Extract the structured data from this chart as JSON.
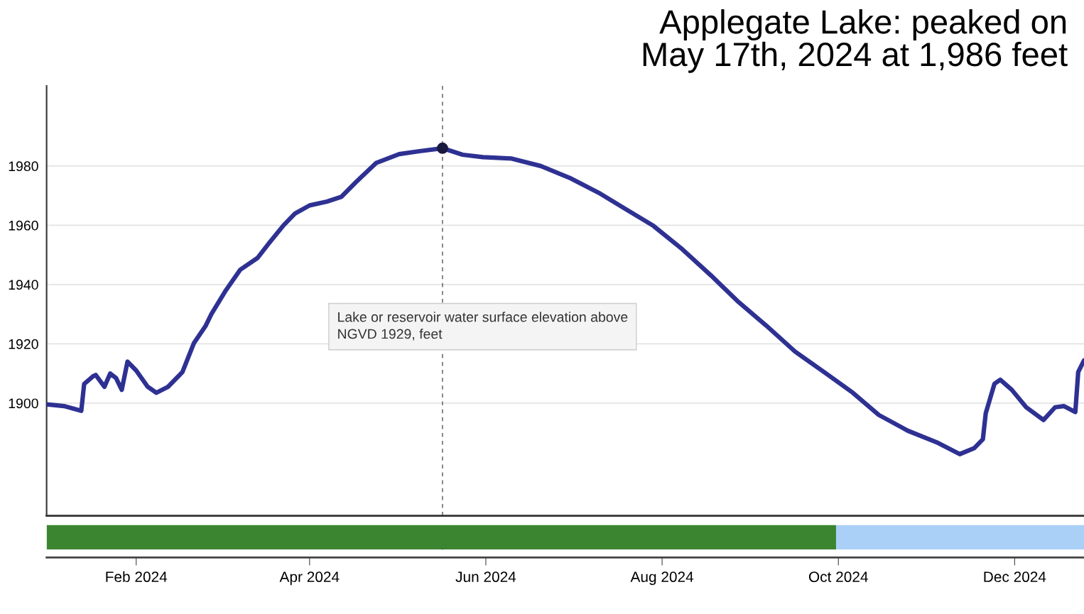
{
  "chart_data": {
    "type": "line",
    "title": "Applegate Lake: peaked on\nMay 17th, 2024 at 1,986 feet",
    "annotations": [
      "Lake or reservoir water surface elevation above\nNGVD 1929, feet"
    ],
    "x": [
      "2024-01-01",
      "2024-01-07",
      "2024-01-13",
      "2024-01-14",
      "2024-01-17",
      "2024-01-18",
      "2024-01-21",
      "2024-01-23",
      "2024-01-25",
      "2024-01-27",
      "2024-01-29",
      "2024-02-01",
      "2024-02-05",
      "2024-02-08",
      "2024-02-12",
      "2024-02-17",
      "2024-02-21",
      "2024-02-25",
      "2024-02-27",
      "2024-03-03",
      "2024-03-08",
      "2024-03-14",
      "2024-03-18",
      "2024-03-23",
      "2024-03-27",
      "2024-04-01",
      "2024-04-07",
      "2024-04-12",
      "2024-04-17",
      "2024-04-24",
      "2024-05-02",
      "2024-05-09",
      "2024-05-17",
      "2024-05-24",
      "2024-05-31",
      "2024-06-10",
      "2024-06-20",
      "2024-06-30",
      "2024-07-10",
      "2024-07-19",
      "2024-07-29",
      "2024-08-08",
      "2024-08-18",
      "2024-08-27",
      "2024-09-06",
      "2024-09-16",
      "2024-09-26",
      "2024-10-06",
      "2024-10-15",
      "2024-10-25",
      "2024-11-04",
      "2024-11-12",
      "2024-11-17",
      "2024-11-20",
      "2024-11-21",
      "2024-11-24",
      "2024-11-26",
      "2024-11-30",
      "2024-12-05",
      "2024-12-11",
      "2024-12-15",
      "2024-12-18",
      "2024-12-22",
      "2024-12-23",
      "2024-12-25"
    ],
    "series": [
      {
        "color": "#2e3192",
        "values": [
          1899.6,
          1899,
          1897.4,
          1906.5,
          1909,
          1909.5,
          1905.5,
          1910,
          1908.5,
          1904.5,
          1914,
          1911,
          1905.5,
          1903.5,
          1905.5,
          1910.5,
          1920.3,
          1926,
          1930,
          1938,
          1945,
          1949,
          1954,
          1960,
          1964,
          1966.7,
          1968,
          1969.6,
          1974.5,
          1981,
          1984,
          1985,
          1986,
          1983.8,
          1983,
          1982.5,
          1980,
          1976,
          1971,
          1965.7,
          1959.8,
          1951.9,
          1943,
          1934.5,
          1926.2,
          1917.4,
          1910.5,
          1903.5,
          1896,
          1890.7,
          1886.8,
          1882.8,
          1884.8,
          1887.8,
          1896.6,
          1906.5,
          1907.9,
          1904.5,
          1898.6,
          1894.3,
          1898.6,
          1899,
          1897,
          1910.5,
          1914.4
        ]
      },
      {
        "type": "scatter",
        "color": "#1a1a40",
        "x": [
          "2024-05-17"
        ],
        "values": [
          1986
        ]
      }
    ],
    "xlim": [
      "2024-01-01",
      "2024-12-25"
    ],
    "xticks": [
      {
        "value": "2024-02-01",
        "label": "Feb 2024"
      },
      {
        "value": "2024-04-01",
        "label": "Apr 2024"
      },
      {
        "value": "2024-06-01",
        "label": "Jun 2024"
      },
      {
        "value": "2024-08-01",
        "label": "Aug 2024"
      },
      {
        "value": "2024-10-01",
        "label": "Oct 2024"
      },
      {
        "value": "2024-12-01",
        "label": "Dec 2024"
      }
    ],
    "ylim": [
      1862,
      2007
    ],
    "yticks": [
      1900,
      1920,
      1940,
      1960,
      1980
    ],
    "grid": "y",
    "ref_lines": [
      {
        "axis": "x",
        "value": "2024-05-17",
        "color": "#555555",
        "line_style": "dashed"
      }
    ]
  }
}
